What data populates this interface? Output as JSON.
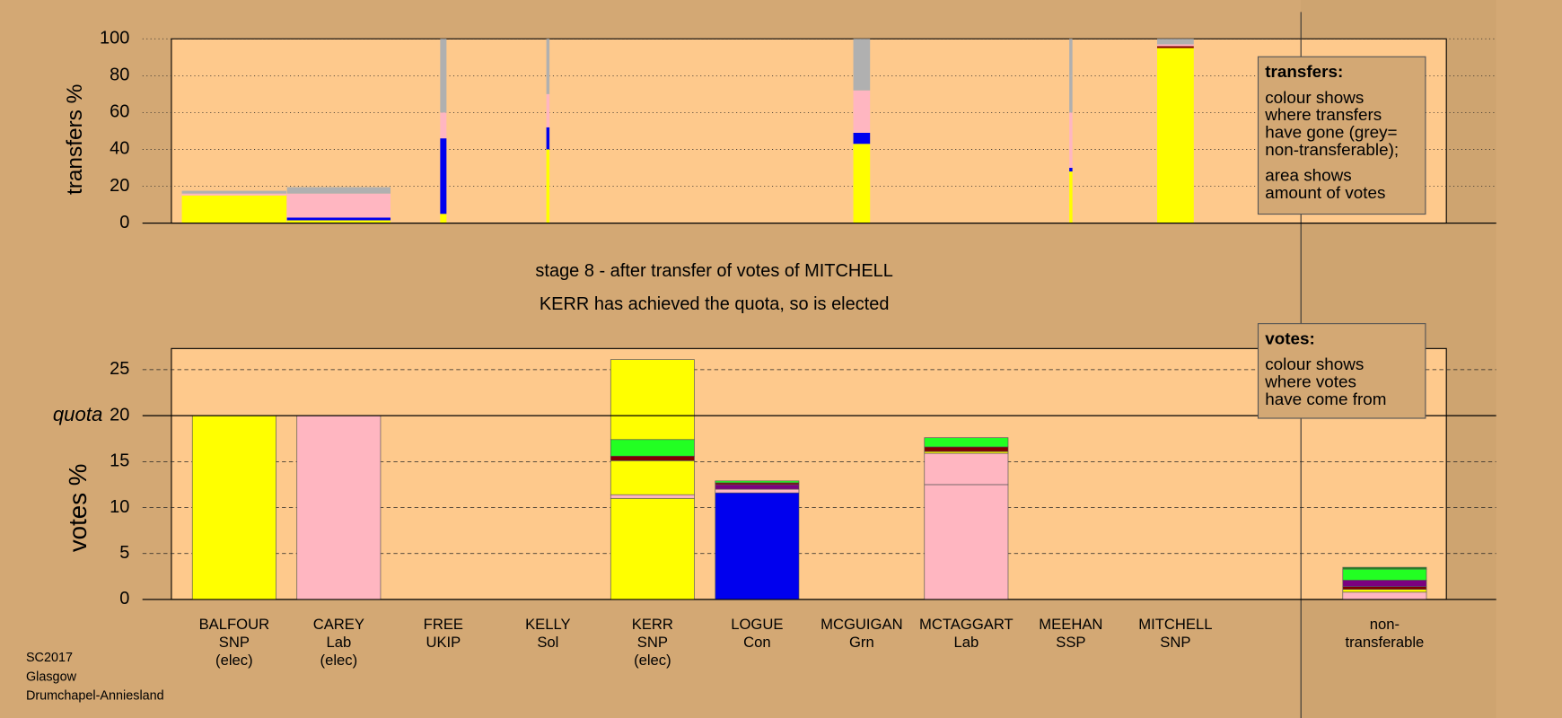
{
  "header": {
    "lines": [
      "stage 8 - after transfer of votes of MITCHELL",
      "KERR has achieved the quota, so is elected"
    ]
  },
  "footer": {
    "lines": [
      "SC2017",
      "Glasgow",
      "Drumchapel-Anniesland"
    ]
  },
  "notes": [
    {
      "title": "transfers:",
      "paragraphs": [
        [
          "colour shows",
          "where transfers",
          "have gone (grey=",
          "non-transferable);"
        ],
        [
          "area shows",
          "amount of votes"
        ]
      ]
    },
    {
      "title": "votes:",
      "paragraphs": [
        [
          "colour shows",
          "where votes",
          "have come from"
        ]
      ]
    }
  ],
  "chart_data": [
    {
      "type": "bar",
      "stacked": true,
      "ylabel": "transfers %",
      "ylim": [
        0,
        100
      ],
      "yticks": [
        0,
        20,
        40,
        60,
        80,
        100
      ],
      "grid": true,
      "bar_widths": [
        1,
        0.99,
        0.06,
        0.03,
        0,
        0,
        0.16,
        0,
        0.03,
        0.35
      ],
      "stacks": [
        [
          {
            "color": "#ffff00",
            "value": 15
          },
          {
            "color": "#ffb6c1",
            "value": 1
          },
          {
            "color": "#b0b0b0",
            "value": 1.5
          }
        ],
        [
          {
            "color": "#ffff00",
            "value": 1.5
          },
          {
            "color": "#0000ee",
            "value": 1.5
          },
          {
            "color": "#ffb6c1",
            "value": 13
          },
          {
            "color": "#b0b0b0",
            "value": 3.5
          }
        ],
        [
          {
            "color": "#ffff00",
            "value": 5
          },
          {
            "color": "#0000ee",
            "value": 41
          },
          {
            "color": "#ffb6c1",
            "value": 14
          },
          {
            "color": "#b0b0b0",
            "value": 40
          }
        ],
        [
          {
            "color": "#ffff00",
            "value": 40
          },
          {
            "color": "#0000ee",
            "value": 12
          },
          {
            "color": "#ffb6c1",
            "value": 18
          },
          {
            "color": "#b0b0b0",
            "value": 30
          }
        ],
        [],
        [],
        [
          {
            "color": "#ffff00",
            "value": 43
          },
          {
            "color": "#0000ee",
            "value": 6
          },
          {
            "color": "#ffb6c1",
            "value": 23
          },
          {
            "color": "#b0b0b0",
            "value": 28
          }
        ],
        [],
        [
          {
            "color": "#ffff00",
            "value": 28
          },
          {
            "color": "#0000ee",
            "value": 2
          },
          {
            "color": "#ffb6c1",
            "value": 30
          },
          {
            "color": "#b0b0b0",
            "value": 40
          }
        ],
        [
          {
            "color": "#ffff00",
            "value": 95
          },
          {
            "color": "#800000",
            "value": 1
          },
          {
            "color": "#ffb6c1",
            "value": 1
          },
          {
            "color": "#b0b0b0",
            "value": 3
          }
        ]
      ]
    },
    {
      "type": "bar",
      "stacked": true,
      "ylabel": "votes %",
      "ylim": [
        0,
        27.3
      ],
      "yticks": [
        0,
        5,
        10,
        15,
        20,
        25
      ],
      "grid": true,
      "quota": {
        "value": 20,
        "label": "quota"
      },
      "categories": [
        [
          "BALFOUR",
          "SNP",
          "(elec)"
        ],
        [
          "CAREY",
          "Lab",
          "(elec)"
        ],
        [
          "FREE",
          "UKIP"
        ],
        [
          "KELLY",
          "Sol"
        ],
        [
          "KERR",
          "SNP",
          "(elec)"
        ],
        [
          "LOGUE",
          "Con"
        ],
        [
          "MCGUIGAN",
          "Grn"
        ],
        [
          "MCTAGGART",
          "Lab"
        ],
        [
          "MEEHAN",
          "SSP"
        ],
        [
          "MITCHELL",
          "SNP"
        ],
        [
          "non-",
          "transferable"
        ]
      ],
      "stacks": [
        [
          {
            "color": "#ffff00",
            "value": 20
          }
        ],
        [
          {
            "color": "#ffb6c1",
            "value": 20
          }
        ],
        [],
        [],
        [
          {
            "color": "#ffff00",
            "value": 11
          },
          {
            "color": "#ffb6c1",
            "value": 0.4
          },
          {
            "color": "#ffff00",
            "value": 3.7
          },
          {
            "color": "#800000",
            "value": 0.5
          },
          {
            "color": "#22ff22",
            "value": 1.8
          },
          {
            "color": "#ffff00",
            "value": 8.7
          }
        ],
        [
          {
            "color": "#0000ee",
            "value": 11.6
          },
          {
            "color": "#ffb6c1",
            "value": 0.4
          },
          {
            "color": "#7b0080",
            "value": 0.5
          },
          {
            "color": "#800000",
            "value": 0.2
          },
          {
            "color": "#22ff22",
            "value": 0.2
          }
        ],
        [],
        [
          {
            "color": "#ffb6c1",
            "value": 12.5
          },
          {
            "color": "#ffb6c1",
            "value": 3.4
          },
          {
            "color": "#ffff00",
            "value": 0.2
          },
          {
            "color": "#800000",
            "value": 0.5
          },
          {
            "color": "#22ff22",
            "value": 1
          }
        ],
        [],
        [],
        [
          {
            "color": "#ffb6c1",
            "value": 0.8
          },
          {
            "color": "#ffff00",
            "value": 0.3
          },
          {
            "color": "#800000",
            "value": 0.3
          },
          {
            "color": "#7b0080",
            "value": 0.7
          },
          {
            "color": "#22ff22",
            "value": 1.2
          },
          {
            "color": "#1a8a1a",
            "value": 0.2
          }
        ]
      ]
    }
  ]
}
